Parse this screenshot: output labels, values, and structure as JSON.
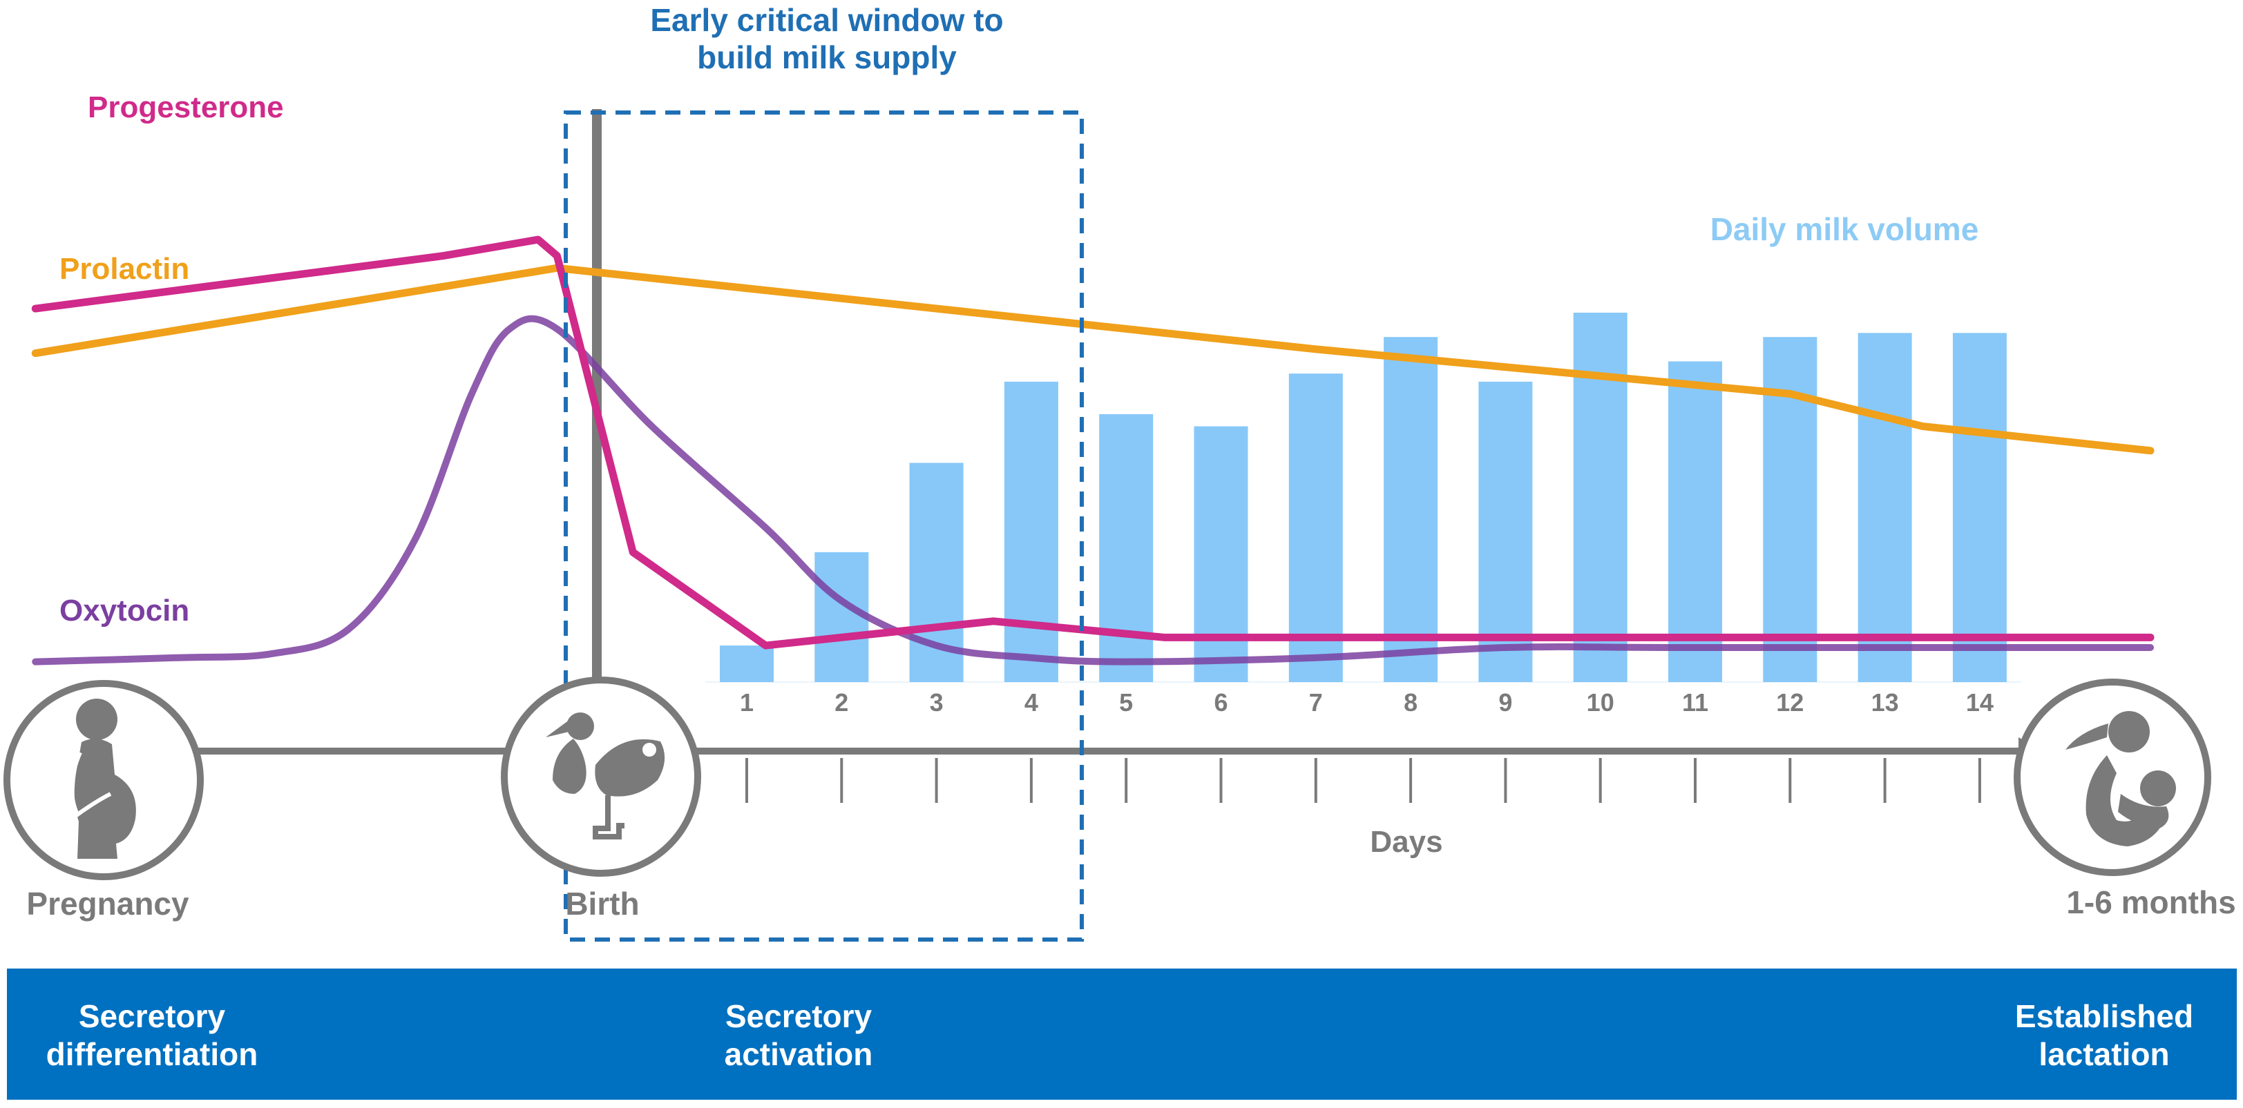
{
  "chart_data": {
    "type": "bar",
    "title": "Early critical window to build milk supply",
    "title_line1": "Early critical window to",
    "title_line2": "build milk supply",
    "xlabel": "Days",
    "ylabel": "",
    "categories": [
      "1",
      "2",
      "3",
      "4",
      "5",
      "6",
      "7",
      "8",
      "9",
      "10",
      "11",
      "12",
      "13",
      "14"
    ],
    "values": [
      0.9,
      3.2,
      5.4,
      7.4,
      6.6,
      6.3,
      7.6,
      8.5,
      7.4,
      9.1,
      7.9,
      8.5,
      8.6,
      8.6
    ],
    "ylim": [
      0,
      10
    ],
    "bar_series_name": "Daily milk volume",
    "hormone_series": [
      {
        "name": "Progesterone",
        "color": "#D02A8A",
        "points": [
          [
            -6.5,
            9.2
          ],
          [
            -2.2,
            10.5
          ],
          [
            -1.2,
            10.9
          ],
          [
            -1.0,
            10.5
          ],
          [
            -0.2,
            3.2
          ],
          [
            1.2,
            0.9
          ],
          [
            3.6,
            1.5
          ],
          [
            5.4,
            1.1
          ],
          [
            15.8,
            1.1
          ]
        ]
      },
      {
        "name": "Prolactin",
        "color": "#F0A01A",
        "points": [
          [
            -6.5,
            8.1
          ],
          [
            -1.0,
            10.2
          ],
          [
            7.0,
            8.2
          ],
          [
            12.0,
            7.1
          ],
          [
            13.4,
            6.3
          ],
          [
            15.8,
            5.7
          ]
        ]
      },
      {
        "name": "Oxytocin",
        "color": "#7B3FA0",
        "points": [
          [
            -6.5,
            0.5
          ],
          [
            -5.0,
            0.6
          ],
          [
            -4.0,
            0.7
          ],
          [
            -3.2,
            1.3
          ],
          [
            -2.5,
            3.5
          ],
          [
            -1.9,
            7.1
          ],
          [
            -1.5,
            8.7
          ],
          [
            -1.0,
            8.7
          ],
          [
            0.0,
            6.3
          ],
          [
            1.2,
            3.8
          ],
          [
            2.0,
            2.0
          ],
          [
            3.0,
            0.9
          ],
          [
            4.0,
            0.6
          ],
          [
            5.0,
            0.5
          ],
          [
            7.0,
            0.6
          ],
          [
            9.0,
            0.85
          ],
          [
            11.0,
            0.85
          ],
          [
            15.8,
            0.85
          ]
        ]
      }
    ],
    "series_labels": {
      "progesterone": "Progesterone",
      "prolactin": "Prolactin",
      "oxytocin": "Oxytocin",
      "milk": "Daily milk volume"
    },
    "colors": {
      "bar": "#87C8F8",
      "milk_label": "#8DCBF5",
      "window_border": "#1F6FB4",
      "title": "#1F6FB4",
      "timeline": "#7A7A7A",
      "band": "#0070C0"
    }
  },
  "milestones": {
    "pregnancy": {
      "label": "Pregnancy",
      "icon": "pregnant-woman-icon"
    },
    "birth": {
      "label": "Birth",
      "icon": "stork-icon"
    },
    "months": {
      "label": "1-6 months",
      "icon": "breastfeeding-icon"
    }
  },
  "phases": [
    {
      "line1": "Secretory",
      "line2": "differentiation"
    },
    {
      "line1": "Secretory",
      "line2": "activation"
    },
    {
      "line1": "Established",
      "line2": "lactation"
    }
  ]
}
